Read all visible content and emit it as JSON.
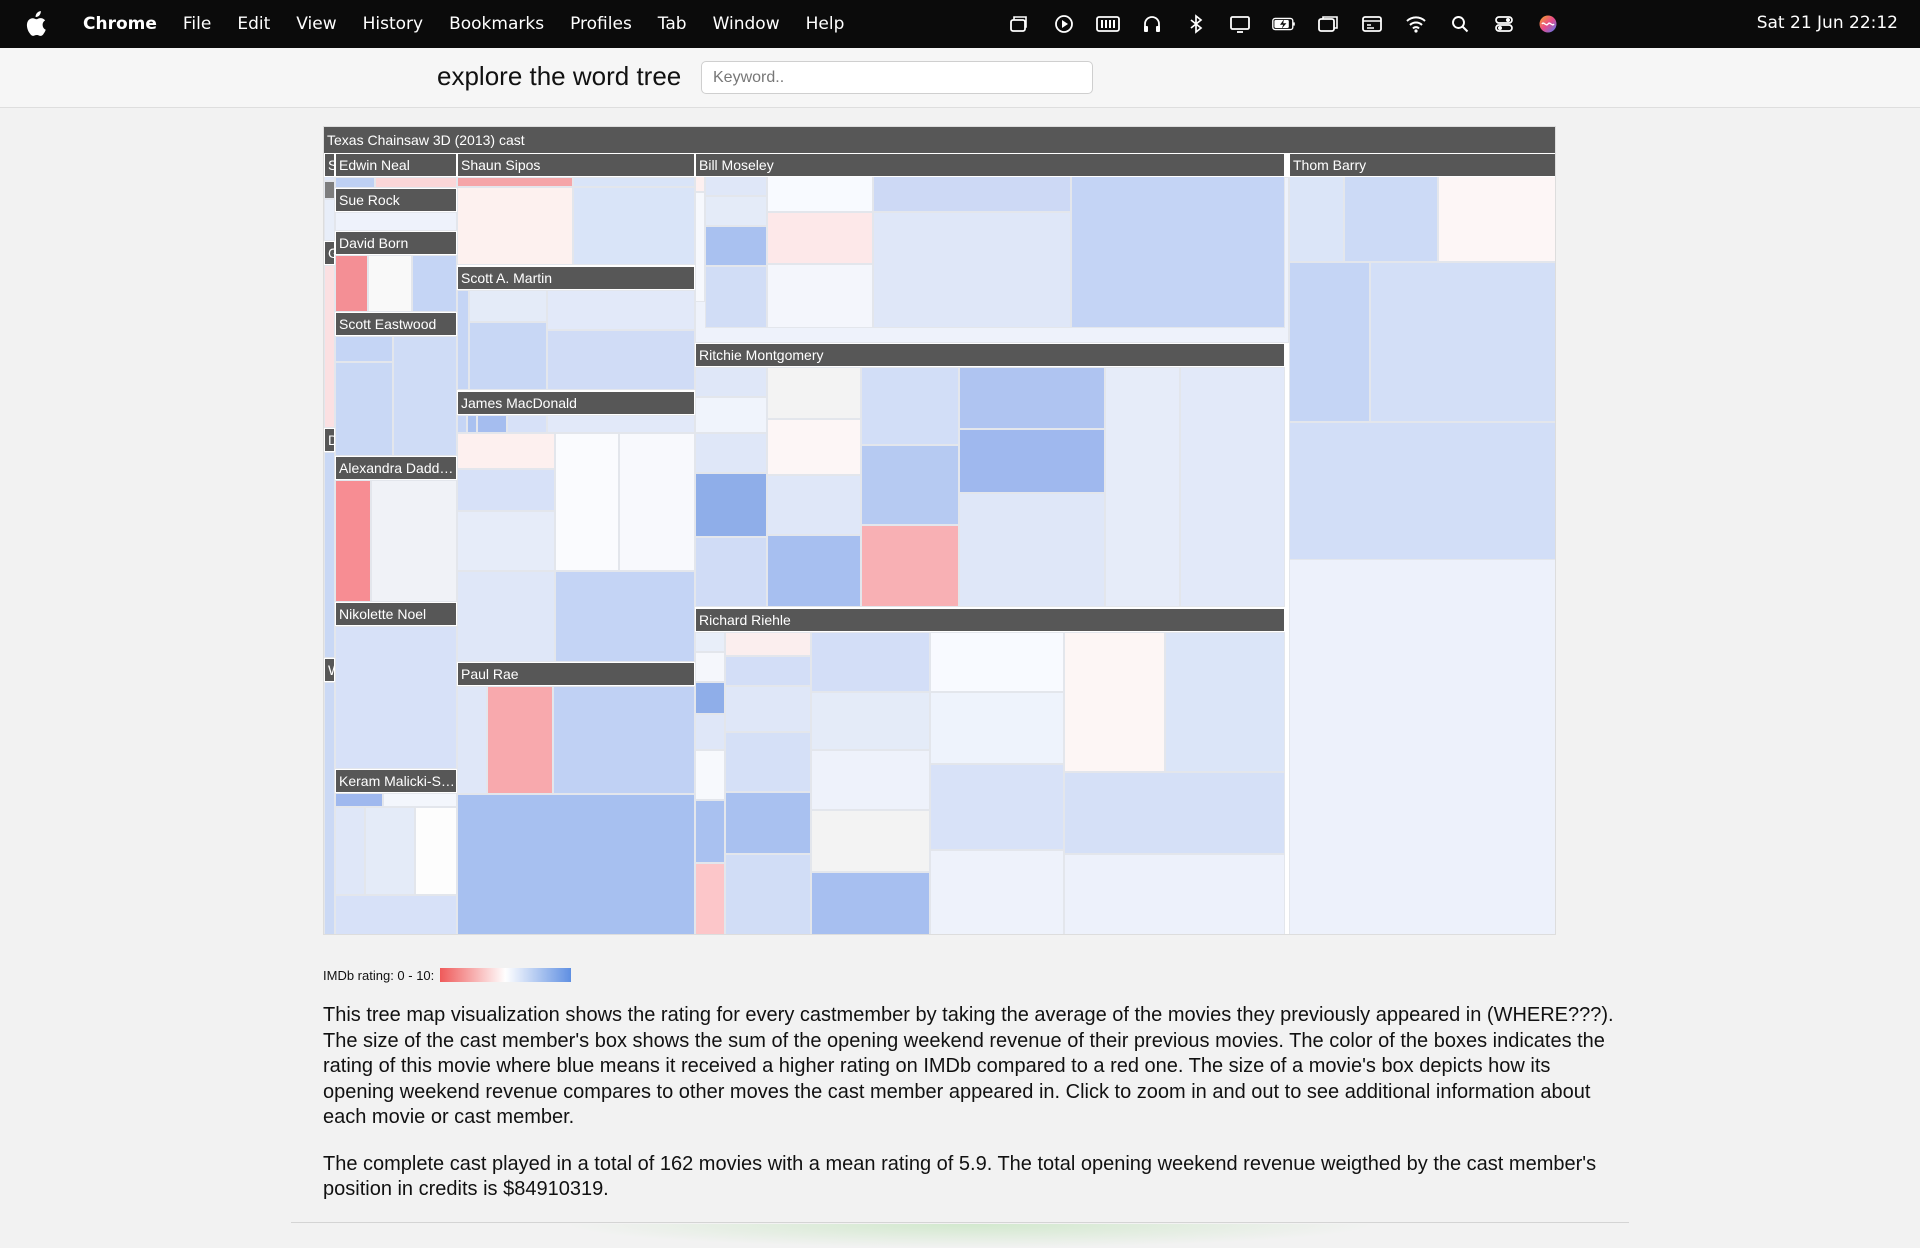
{
  "menubar": {
    "items": [
      "Chrome",
      "File",
      "Edit",
      "View",
      "History",
      "Bookmarks",
      "Profiles",
      "Tab",
      "Window",
      "Help"
    ],
    "status_icons": [
      "stage-manager-icon",
      "play-icon",
      "battery-level-icon",
      "headphones-icon",
      "bluetooth-icon",
      "display-icon",
      "battery-charging-icon",
      "window-icon",
      "screen-icon",
      "wifi-icon",
      "search-icon",
      "control-center-icon",
      "siri-icon"
    ],
    "clock": "Sat 21 Jun  22:12"
  },
  "header": {
    "title": "explore the word tree",
    "keyword_placeholder": "Keyword.."
  },
  "treemap": {
    "root_label": "Texas Chainsaw 3D (2013) cast",
    "cast_labels": {
      "edwin_neal": "Edwin Neal",
      "shaun_sipos": "Shaun Sipos",
      "bill_moseley": "Bill Moseley",
      "thom_barry": "Thom Barry",
      "sue_rock": "Sue Rock",
      "david_born": "David Born",
      "scott_a_martin": "Scott A. Martin",
      "scott_eastwood": "Scott Eastwood",
      "ritchie_montgomery": "Ritchie Montgomery",
      "james_macdonald": "James MacDonald",
      "alexandra_daddario": "Alexandra Dadda...",
      "nikolette_noel": "Nikolette Noel",
      "richard_riehle": "Richard Riehle",
      "paul_rae": "Paul Rae",
      "keram_malicki": "Keram Malicki-Sá...",
      "col_s": "S",
      "col_g": "G",
      "col_d": "D",
      "col_w": "W"
    },
    "colors": {
      "low": "#ef5a5a",
      "mid": "#ffffff",
      "high": "#5f8fe2"
    }
  },
  "legend": {
    "label": "IMDb rating: 0 - 10:"
  },
  "description": {
    "paragraph1": "This tree map visualization shows the rating for every castmember by taking the average of the movies they previously appeared in (WHERE???). The size of the cast member's box shows the sum of the opening weekend revenue of their previous movies. The color of the boxes indicates the rating of this movie where blue means it received a higher rating on IMDb compared to a red one. The size of a movie's box depicts how its opening weekend revenue compares to other moves the cast member appeared in. Click to zoom in and out to see additional information about each movie or cast member.",
    "paragraph2": "The complete cast played in a total of 162 movies with a mean rating of 5.9. The total opening weekend revenue weigthed by the cast member's position in credits is $84910319."
  }
}
